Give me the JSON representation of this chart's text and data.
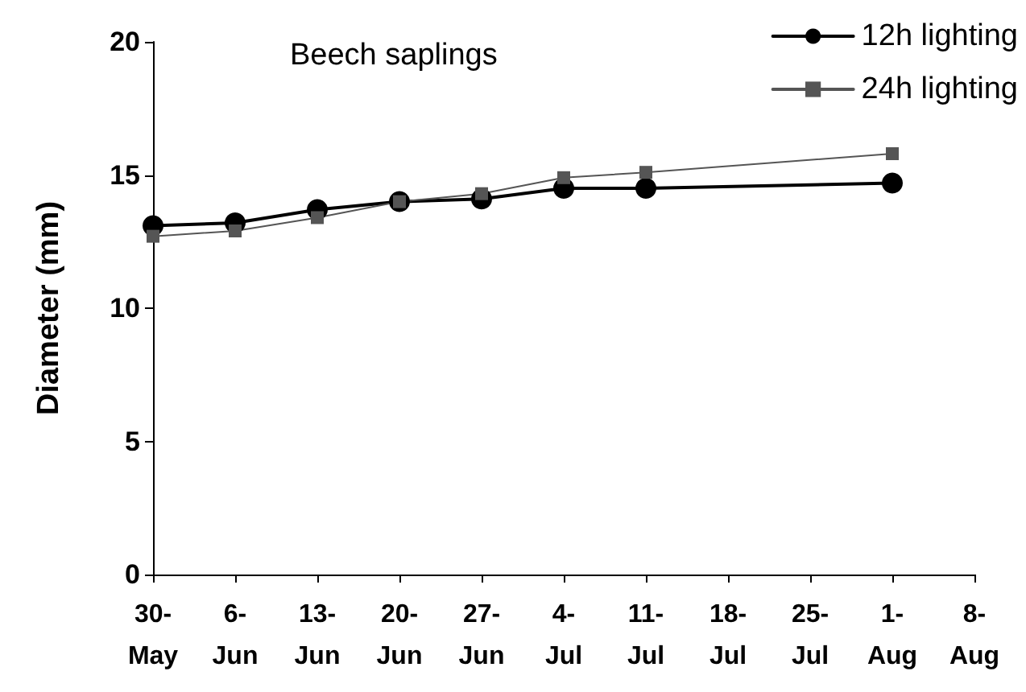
{
  "chart_data": {
    "type": "line",
    "title": "Beech saplings",
    "ylabel": "Diameter (mm)",
    "x": [
      "--05-30",
      "--06-06",
      "--06-13",
      "--06-20",
      "--06-27",
      "--07-04",
      "--07-11",
      "--08-01"
    ],
    "series": [
      {
        "name": "12h lighting",
        "color": "#000000",
        "marker": "circle",
        "values": [
          13.1,
          13.2,
          13.7,
          14.0,
          14.1,
          14.5,
          14.5,
          14.7
        ]
      },
      {
        "name": "24h lighting",
        "color": "#555555",
        "marker": "square",
        "values": [
          12.7,
          12.9,
          13.4,
          14.0,
          14.3,
          14.9,
          15.1,
          15.8
        ]
      }
    ],
    "xlim": [
      "--05-30",
      "--08-08"
    ],
    "xticks": [
      {
        "value": "--05-30",
        "label": "30-\nMay"
      },
      {
        "value": "--06-06",
        "label": "6-\nJun"
      },
      {
        "value": "--06-13",
        "label": "13-\nJun"
      },
      {
        "value": "--06-20",
        "label": "20-\nJun"
      },
      {
        "value": "--06-27",
        "label": "27-\nJun"
      },
      {
        "value": "--07-04",
        "label": "4-\nJul"
      },
      {
        "value": "--07-11",
        "label": "11-\nJul"
      },
      {
        "value": "--07-18",
        "label": "18-\nJul"
      },
      {
        "value": "--07-25",
        "label": "25-\nJul"
      },
      {
        "value": "--08-01",
        "label": "1-\nAug"
      },
      {
        "value": "--08-08",
        "label": "8-\nAug"
      }
    ],
    "ylim": [
      0,
      20
    ],
    "yticks": [
      0,
      5,
      10,
      15,
      20
    ],
    "grid": false,
    "legend": "top right"
  }
}
